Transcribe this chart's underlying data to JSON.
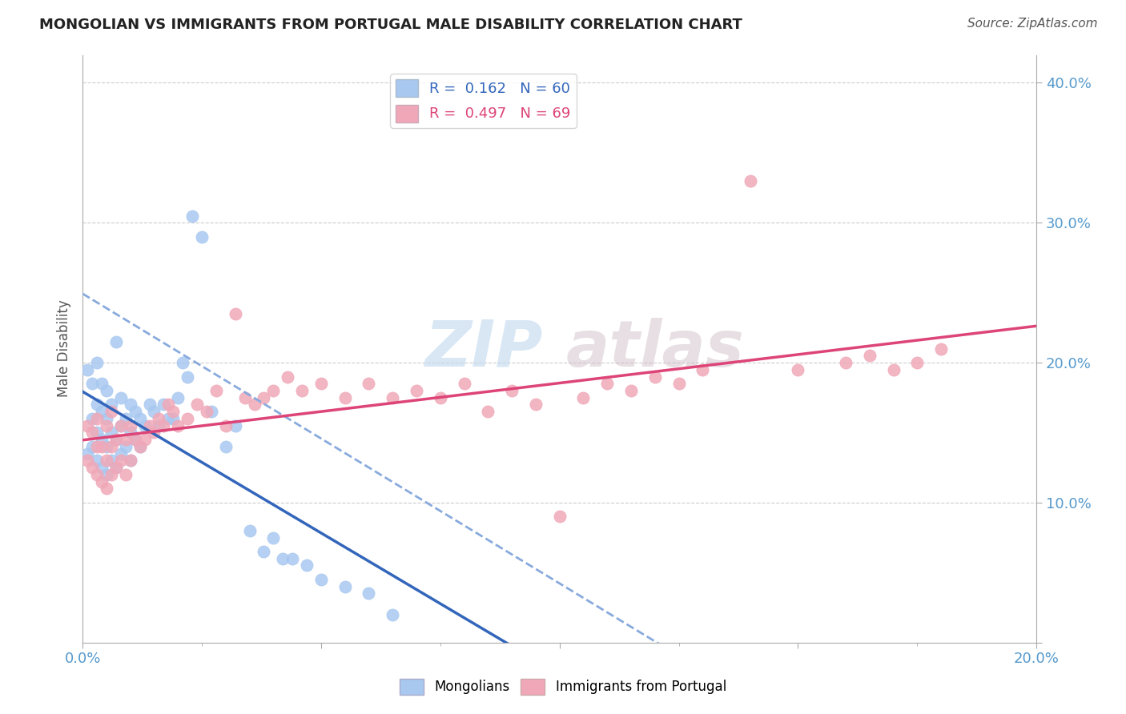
{
  "title": "MONGOLIAN VS IMMIGRANTS FROM PORTUGAL MALE DISABILITY CORRELATION CHART",
  "source": "Source: ZipAtlas.com",
  "ylabel": "Male Disability",
  "xlim": [
    0.0,
    0.2
  ],
  "ylim": [
    0.0,
    0.42
  ],
  "xtick_positions": [
    0.0,
    0.05,
    0.1,
    0.15,
    0.2
  ],
  "xtick_labels": [
    "0.0%",
    "",
    "",
    "",
    "20.0%"
  ],
  "ytick_positions": [
    0.0,
    0.1,
    0.2,
    0.3,
    0.4
  ],
  "ytick_labels": [
    "",
    "10.0%",
    "20.0%",
    "30.0%",
    "40.0%"
  ],
  "blue_scatter_color": "#a8c8f0",
  "pink_scatter_color": "#f0a8b8",
  "blue_line_color": "#3366bb",
  "pink_line_color": "#dd4477",
  "dashed_line_color": "#88aadd",
  "R_blue": 0.162,
  "N_blue": 60,
  "R_pink": 0.497,
  "N_pink": 69,
  "watermark_top": "ZIP",
  "watermark_bottom": "atlas",
  "background_color": "#ffffff",
  "grid_color": "#cccccc",
  "legend_blue_label": "Mongolians",
  "legend_pink_label": "Immigrants from Portugal",
  "axis_text_color": "#5599cc",
  "title_color": "#222222",
  "source_color": "#555555",
  "ylabel_color": "#555555",
  "blue_scatter_x": [
    0.001,
    0.001,
    0.002,
    0.002,
    0.002,
    0.003,
    0.003,
    0.003,
    0.003,
    0.004,
    0.004,
    0.004,
    0.004,
    0.005,
    0.005,
    0.005,
    0.005,
    0.006,
    0.006,
    0.006,
    0.007,
    0.007,
    0.007,
    0.008,
    0.008,
    0.008,
    0.009,
    0.009,
    0.01,
    0.01,
    0.01,
    0.011,
    0.011,
    0.012,
    0.012,
    0.013,
    0.014,
    0.015,
    0.016,
    0.017,
    0.018,
    0.019,
    0.02,
    0.021,
    0.022,
    0.023,
    0.025,
    0.027,
    0.03,
    0.032,
    0.035,
    0.038,
    0.04,
    0.042,
    0.044,
    0.047,
    0.05,
    0.055,
    0.06,
    0.065
  ],
  "blue_scatter_y": [
    0.135,
    0.195,
    0.14,
    0.16,
    0.185,
    0.13,
    0.15,
    0.17,
    0.2,
    0.125,
    0.145,
    0.165,
    0.185,
    0.12,
    0.14,
    0.16,
    0.18,
    0.13,
    0.15,
    0.17,
    0.125,
    0.145,
    0.215,
    0.135,
    0.155,
    0.175,
    0.14,
    0.16,
    0.13,
    0.15,
    0.17,
    0.145,
    0.165,
    0.14,
    0.16,
    0.155,
    0.17,
    0.165,
    0.155,
    0.17,
    0.16,
    0.16,
    0.175,
    0.2,
    0.19,
    0.305,
    0.29,
    0.165,
    0.14,
    0.155,
    0.08,
    0.065,
    0.075,
    0.06,
    0.06,
    0.055,
    0.045,
    0.04,
    0.035,
    0.02
  ],
  "pink_scatter_x": [
    0.001,
    0.001,
    0.002,
    0.002,
    0.003,
    0.003,
    0.003,
    0.004,
    0.004,
    0.005,
    0.005,
    0.005,
    0.006,
    0.006,
    0.006,
    0.007,
    0.007,
    0.008,
    0.008,
    0.009,
    0.009,
    0.01,
    0.01,
    0.011,
    0.012,
    0.013,
    0.014,
    0.015,
    0.016,
    0.017,
    0.018,
    0.019,
    0.02,
    0.022,
    0.024,
    0.026,
    0.028,
    0.03,
    0.032,
    0.034,
    0.036,
    0.038,
    0.04,
    0.043,
    0.046,
    0.05,
    0.055,
    0.06,
    0.065,
    0.07,
    0.075,
    0.08,
    0.09,
    0.1,
    0.11,
    0.12,
    0.13,
    0.14,
    0.15,
    0.16,
    0.165,
    0.17,
    0.175,
    0.18,
    0.085,
    0.095,
    0.105,
    0.115,
    0.125
  ],
  "pink_scatter_y": [
    0.13,
    0.155,
    0.125,
    0.15,
    0.12,
    0.14,
    0.16,
    0.115,
    0.14,
    0.11,
    0.13,
    0.155,
    0.12,
    0.14,
    0.165,
    0.125,
    0.145,
    0.13,
    0.155,
    0.12,
    0.145,
    0.13,
    0.155,
    0.145,
    0.14,
    0.145,
    0.155,
    0.15,
    0.16,
    0.155,
    0.17,
    0.165,
    0.155,
    0.16,
    0.17,
    0.165,
    0.18,
    0.155,
    0.235,
    0.175,
    0.17,
    0.175,
    0.18,
    0.19,
    0.18,
    0.185,
    0.175,
    0.185,
    0.175,
    0.18,
    0.175,
    0.185,
    0.18,
    0.09,
    0.185,
    0.19,
    0.195,
    0.33,
    0.195,
    0.2,
    0.205,
    0.195,
    0.2,
    0.21,
    0.165,
    0.17,
    0.175,
    0.18,
    0.185
  ]
}
